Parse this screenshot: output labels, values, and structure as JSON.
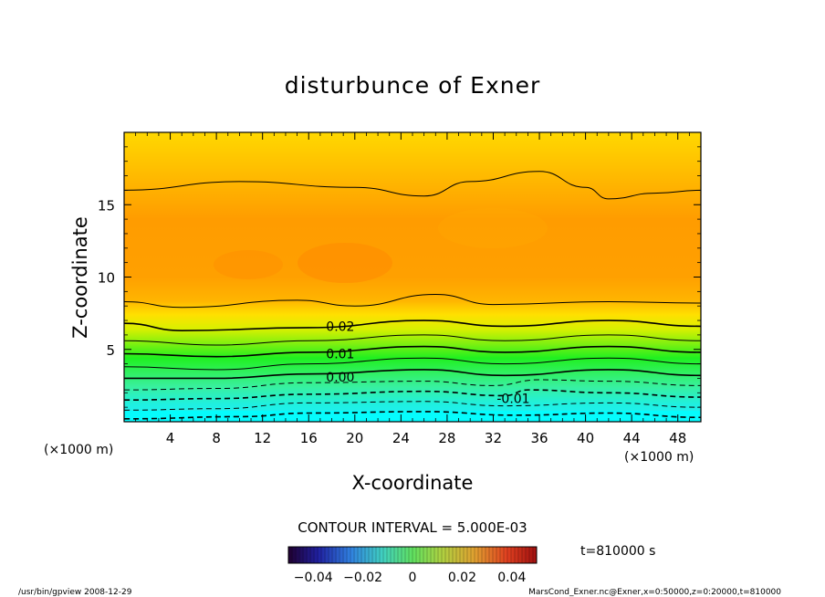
{
  "chart_data": {
    "type": "heatmap",
    "title": "disturbunce of Exner",
    "xlabel": "X-coordinate",
    "ylabel": "Z-coordinate",
    "x_unit": "(×1000 m)",
    "y_unit": "(×1000 m)",
    "xlim": [
      0,
      50
    ],
    "ylim": [
      0,
      20
    ],
    "x_ticks": [
      "4",
      "8",
      "12",
      "16",
      "20",
      "24",
      "28",
      "32",
      "36",
      "40",
      "44",
      "48"
    ],
    "y_ticks": [
      "5",
      "10",
      "15"
    ],
    "contour_interval_text": "CONTOUR INTERVAL = 5.000E-03",
    "contour_labels": [
      {
        "text": "0.02",
        "x": 17,
        "z": 6.6
      },
      {
        "text": "0.01",
        "x": 17,
        "z": 4.7
      },
      {
        "text": "0.00",
        "x": 17,
        "z": 3.1
      },
      {
        "text": "-0.01",
        "x": 32,
        "z": 1.6
      }
    ],
    "contours": [
      {
        "value": -0.02,
        "points": [
          [
            0,
            0.2
          ],
          [
            10,
            0.35
          ],
          [
            16,
            0.6
          ],
          [
            26,
            0.7
          ],
          [
            34,
            0.45
          ],
          [
            42,
            0.6
          ],
          [
            50,
            0.3
          ]
        ]
      },
      {
        "value": -0.015,
        "points": [
          [
            0,
            0.8
          ],
          [
            8,
            0.9
          ],
          [
            16,
            1.3
          ],
          [
            26,
            1.4
          ],
          [
            33,
            1.1
          ],
          [
            42,
            1.3
          ],
          [
            50,
            1.0
          ]
        ]
      },
      {
        "value": -0.01,
        "points": [
          [
            0,
            1.5
          ],
          [
            8,
            1.6
          ],
          [
            16,
            1.9
          ],
          [
            26,
            2.1
          ],
          [
            33,
            1.8
          ],
          [
            35,
            2.2
          ],
          [
            42,
            2.0
          ],
          [
            50,
            1.7
          ]
        ]
      },
      {
        "value": -0.005,
        "points": [
          [
            0,
            2.2
          ],
          [
            8,
            2.3
          ],
          [
            16,
            2.7
          ],
          [
            26,
            2.8
          ],
          [
            32,
            2.5
          ],
          [
            36,
            2.9
          ],
          [
            42,
            2.8
          ],
          [
            50,
            2.5
          ]
        ]
      },
      {
        "value": 0.0,
        "points": [
          [
            0,
            3.0
          ],
          [
            8,
            3.0
          ],
          [
            16,
            3.3
          ],
          [
            26,
            3.6
          ],
          [
            33,
            3.2
          ],
          [
            42,
            3.6
          ],
          [
            50,
            3.2
          ]
        ]
      },
      {
        "value": 0.005,
        "points": [
          [
            0,
            3.8
          ],
          [
            8,
            3.6
          ],
          [
            16,
            4.0
          ],
          [
            26,
            4.4
          ],
          [
            33,
            4.0
          ],
          [
            42,
            4.4
          ],
          [
            50,
            4.0
          ]
        ]
      },
      {
        "value": 0.01,
        "points": [
          [
            0,
            4.7
          ],
          [
            8,
            4.5
          ],
          [
            16,
            4.8
          ],
          [
            26,
            5.2
          ],
          [
            33,
            4.8
          ],
          [
            42,
            5.2
          ],
          [
            50,
            4.8
          ]
        ]
      },
      {
        "value": 0.015,
        "points": [
          [
            0,
            5.6
          ],
          [
            8,
            5.3
          ],
          [
            16,
            5.6
          ],
          [
            26,
            6.0
          ],
          [
            33,
            5.6
          ],
          [
            42,
            6.0
          ],
          [
            50,
            5.6
          ]
        ]
      },
      {
        "value": 0.02,
        "points": [
          [
            0,
            6.8
          ],
          [
            5,
            6.3
          ],
          [
            16,
            6.5
          ],
          [
            26,
            7.0
          ],
          [
            33,
            6.6
          ],
          [
            42,
            7.0
          ],
          [
            50,
            6.6
          ]
        ]
      },
      {
        "value": 0.025,
        "points": [
          [
            0,
            8.3
          ],
          [
            5,
            7.9
          ],
          [
            15,
            8.4
          ],
          [
            20,
            8.0
          ],
          [
            27,
            8.8
          ],
          [
            32,
            8.1
          ],
          [
            42,
            8.3
          ],
          [
            50,
            8.2
          ]
        ]
      },
      {
        "value": 0.025,
        "points": [
          [
            0,
            16.0
          ],
          [
            10,
            16.6
          ],
          [
            20,
            16.2
          ],
          [
            26,
            15.6
          ],
          [
            30,
            16.6
          ],
          [
            36,
            17.3
          ],
          [
            40,
            16.2
          ],
          [
            42,
            15.4
          ],
          [
            46,
            15.8
          ],
          [
            50,
            16.0
          ]
        ]
      }
    ],
    "colorbar": {
      "ticks": [
        "−0.04",
        "−0.02",
        "0",
        "0.02",
        "0.04"
      ],
      "range": [
        -0.05,
        0.05
      ]
    },
    "time_label": "t=810000  s"
  },
  "footer": {
    "left": "/usr/bin/gpview   2008-12-29",
    "right": "MarsCond_Exner.nc@Exner,x=0:50000,z=0:20000,t=810000"
  },
  "colors": {
    "cyan": "#00ffff",
    "green": "#00ff00",
    "yellow": "#ffff00",
    "orange": "#ffa000",
    "deep_orange": "#ff8c00"
  }
}
